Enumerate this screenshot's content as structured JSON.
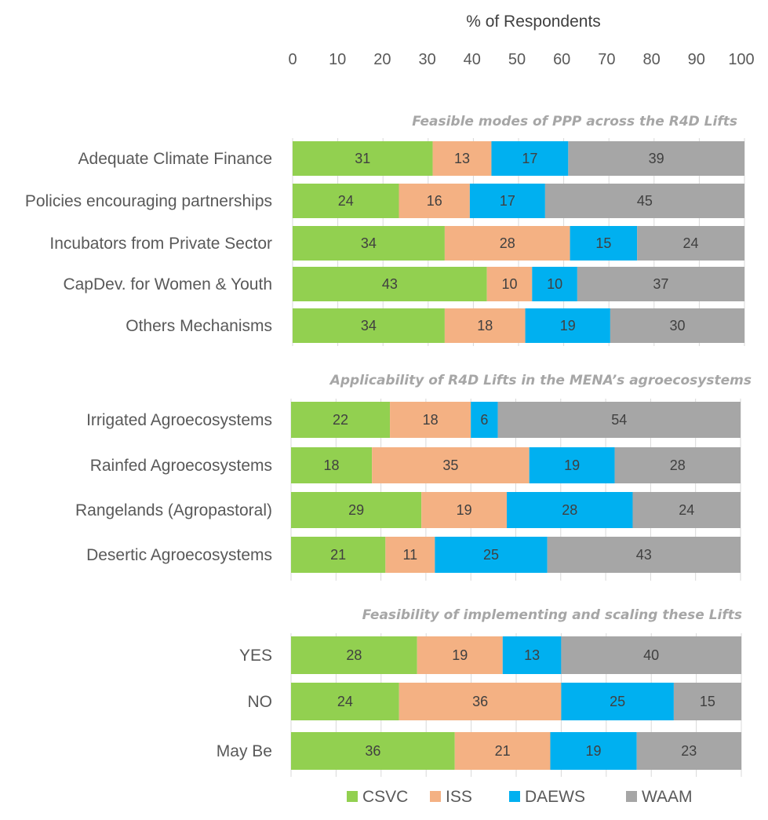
{
  "chart_data": {
    "type": "bar",
    "orientation": "horizontal",
    "stacked": true,
    "xlabel": "% of Respondents",
    "xlim": [
      0,
      100
    ],
    "xticks": [
      "0",
      "10",
      "20",
      "30",
      "40",
      "50",
      "60",
      "70",
      "80",
      "90",
      "100"
    ],
    "legend_position": "bottom",
    "series": [
      {
        "name": "CSVC",
        "color": "#92d050"
      },
      {
        "name": "ISS",
        "color": "#f4b183"
      },
      {
        "name": "DAEWS",
        "color": "#00b0f0"
      },
      {
        "name": "WAAM",
        "color": "#a6a6a6"
      }
    ],
    "sections": [
      {
        "title": "Feasible modes of PPP across the R4D Lifts",
        "rows": [
          {
            "label": "Adequate Climate Finance",
            "values": [
              31,
              13,
              17,
              39
            ]
          },
          {
            "label": "Policies encouraging partnerships",
            "values": [
              24,
              16,
              17,
              45
            ]
          },
          {
            "label": "Incubators from Private Sector",
            "values": [
              34,
              28,
              15,
              24
            ]
          },
          {
            "label": "CapDev. for Women & Youth",
            "values": [
              43,
              10,
              10,
              37
            ]
          },
          {
            "label": "Others Mechanisms",
            "values": [
              34,
              18,
              19,
              30
            ]
          }
        ]
      },
      {
        "title": "Applicability of R4D Lifts in the MENA’s agroecosystems",
        "rows": [
          {
            "label": "Irrigated Agroecosystems",
            "values": [
              22,
              18,
              6,
              54
            ]
          },
          {
            "label": "Rainfed Agroecosystems",
            "values": [
              18,
              35,
              19,
              28
            ]
          },
          {
            "label": "Rangelands (Agropastoral)",
            "values": [
              29,
              19,
              28,
              24
            ]
          },
          {
            "label": "Desertic Agroecosystems",
            "values": [
              21,
              11,
              25,
              43
            ]
          }
        ]
      },
      {
        "title": "Feasibility of implementing and scaling these Lifts",
        "rows": [
          {
            "label": "YES",
            "values": [
              28,
              19,
              13,
              40
            ]
          },
          {
            "label": "NO",
            "values": [
              24,
              36,
              25,
              15
            ]
          },
          {
            "label": "May Be",
            "values": [
              36,
              21,
              19,
              23
            ]
          }
        ]
      }
    ]
  }
}
